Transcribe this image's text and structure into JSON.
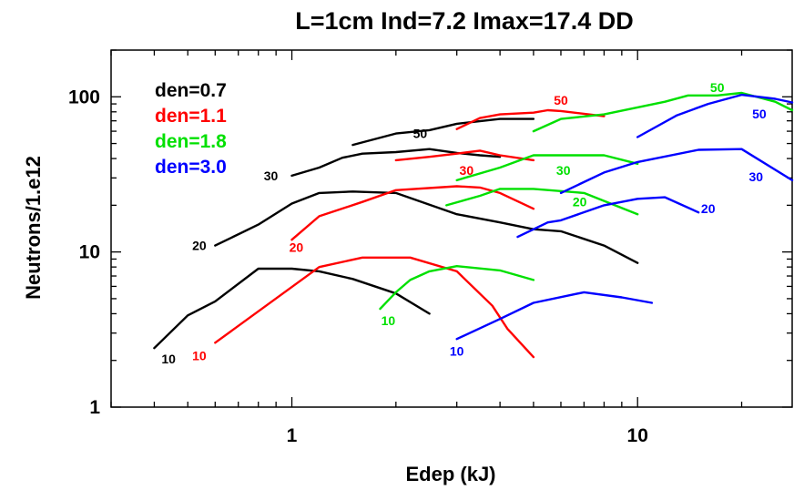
{
  "chart_data": {
    "type": "line",
    "title": "L=1cm Ind=7.2 Imax=17.4 DD",
    "xlabel": "Edep (kJ)",
    "ylabel": "Neutrons/1.e12",
    "xscale": "log",
    "yscale": "log",
    "xlim": [
      0.3,
      28
    ],
    "ylim": [
      1,
      200
    ],
    "xticks": [
      {
        "value": 1,
        "label": "1"
      },
      {
        "value": 10,
        "label": "10"
      }
    ],
    "yticks": [
      {
        "value": 1,
        "label": "1"
      },
      {
        "value": 10,
        "label": "10"
      },
      {
        "value": 100,
        "label": "100"
      }
    ],
    "legend_position": "top-left",
    "legend": [
      {
        "label": "den=0.7",
        "color": "#000000"
      },
      {
        "label": "den=1.1",
        "color": "#ff0000"
      },
      {
        "label": "den=1.8",
        "color": "#00e000"
      },
      {
        "label": "den=3.0",
        "color": "#0000ff"
      }
    ],
    "series": [
      {
        "group": "den=0.7",
        "label": "10",
        "color": "#000000",
        "label_at": [
          0.44,
          2.05
        ],
        "points": [
          [
            0.4,
            2.4
          ],
          [
            0.5,
            3.9
          ],
          [
            0.6,
            4.8
          ],
          [
            0.8,
            7.8
          ],
          [
            1.0,
            7.8
          ],
          [
            1.2,
            7.5
          ],
          [
            1.5,
            6.7
          ],
          [
            2.0,
            5.4
          ],
          [
            2.5,
            4.0
          ]
        ]
      },
      {
        "group": "den=0.7",
        "label": "20",
        "color": "#000000",
        "label_at": [
          0.54,
          11.0
        ],
        "points": [
          [
            0.6,
            11.0
          ],
          [
            0.8,
            15.0
          ],
          [
            1.0,
            20.5
          ],
          [
            1.2,
            24.0
          ],
          [
            1.5,
            24.5
          ],
          [
            2.0,
            24.0
          ],
          [
            3.0,
            17.5
          ],
          [
            4.0,
            15.5
          ],
          [
            5.0,
            14.0
          ],
          [
            6.0,
            13.6
          ],
          [
            8.0,
            11.0
          ],
          [
            10.0,
            8.5
          ]
        ]
      },
      {
        "group": "den=0.7",
        "label": "30",
        "color": "#000000",
        "label_at": [
          0.87,
          31.0
        ],
        "points": [
          [
            1.0,
            31.0
          ],
          [
            1.2,
            35.0
          ],
          [
            1.4,
            40.5
          ],
          [
            1.6,
            43.0
          ],
          [
            2.0,
            44.0
          ],
          [
            2.5,
            46.0
          ],
          [
            3.0,
            43.5
          ],
          [
            3.5,
            42.0
          ],
          [
            4.0,
            41.0
          ]
        ]
      },
      {
        "group": "den=0.7",
        "label": "50",
        "color": "#000000",
        "label_at": [
          2.35,
          58.0
        ],
        "points": [
          [
            1.5,
            49.0
          ],
          [
            2.0,
            58.0
          ],
          [
            2.5,
            61.0
          ],
          [
            3.0,
            67.0
          ],
          [
            4.0,
            72.0
          ],
          [
            5.0,
            72.0
          ]
        ]
      },
      {
        "group": "den=1.1",
        "label": "10",
        "color": "#ff0000",
        "label_at": [
          0.54,
          2.15
        ],
        "points": [
          [
            0.6,
            2.6
          ],
          [
            1.2,
            8.0
          ],
          [
            1.6,
            9.2
          ],
          [
            2.2,
            9.2
          ],
          [
            3.0,
            7.5
          ],
          [
            3.8,
            4.5
          ],
          [
            4.2,
            3.2
          ],
          [
            5.0,
            2.1
          ]
        ]
      },
      {
        "group": "den=1.1",
        "label": "20",
        "color": "#ff0000",
        "label_at": [
          1.03,
          10.7
        ],
        "points": [
          [
            1.0,
            12.0
          ],
          [
            1.2,
            17.0
          ],
          [
            1.6,
            21.0
          ],
          [
            2.0,
            25.0
          ],
          [
            3.0,
            26.5
          ],
          [
            3.5,
            26.0
          ],
          [
            4.0,
            24.0
          ],
          [
            5.0,
            19.0
          ]
        ]
      },
      {
        "group": "den=1.1",
        "label": "30",
        "color": "#ff0000",
        "label_at": [
          3.2,
          33.5
        ],
        "points": [
          [
            2.0,
            39.0
          ],
          [
            2.5,
            41.0
          ],
          [
            3.0,
            43.0
          ],
          [
            3.5,
            45.0
          ],
          [
            4.0,
            42.0
          ],
          [
            5.0,
            39.0
          ]
        ]
      },
      {
        "group": "den=1.1",
        "label": "50",
        "color": "#ff0000",
        "label_at": [
          6.0,
          95.0
        ],
        "points": [
          [
            3.0,
            62.0
          ],
          [
            3.5,
            73.0
          ],
          [
            4.0,
            77.0
          ],
          [
            5.0,
            79.0
          ],
          [
            5.5,
            82.0
          ],
          [
            6.0,
            81.0
          ],
          [
            8.0,
            75.0
          ]
        ]
      },
      {
        "group": "den=1.8",
        "label": "10",
        "color": "#00e000",
        "label_at": [
          1.9,
          3.6
        ],
        "points": [
          [
            1.8,
            4.3
          ],
          [
            2.0,
            5.5
          ],
          [
            2.2,
            6.6
          ],
          [
            2.5,
            7.5
          ],
          [
            3.0,
            8.1
          ],
          [
            4.0,
            7.6
          ],
          [
            5.0,
            6.6
          ]
        ]
      },
      {
        "group": "den=1.8",
        "label": "20",
        "color": "#00e000",
        "label_at": [
          6.8,
          21.0
        ],
        "points": [
          [
            2.8,
            20.0
          ],
          [
            3.5,
            23.0
          ],
          [
            4.0,
            25.5
          ],
          [
            5.0,
            25.5
          ],
          [
            7.0,
            24.0
          ],
          [
            10.0,
            17.5
          ]
        ]
      },
      {
        "group": "den=1.8",
        "label": "30",
        "color": "#00e000",
        "label_at": [
          6.1,
          33.5
        ],
        "points": [
          [
            3.0,
            29.0
          ],
          [
            4.0,
            35.0
          ],
          [
            5.0,
            42.0
          ],
          [
            6.0,
            42.0
          ],
          [
            8.0,
            42.0
          ],
          [
            10.0,
            37.0
          ]
        ]
      },
      {
        "group": "den=1.8",
        "label": "50",
        "color": "#00e000",
        "label_at": [
          17.0,
          115.0
        ],
        "points": [
          [
            5.0,
            60.0
          ],
          [
            6.0,
            72.0
          ],
          [
            8.0,
            77.0
          ],
          [
            12.0,
            93.0
          ],
          [
            14.0,
            102.0
          ],
          [
            17.0,
            102.0
          ],
          [
            20.0,
            106.0
          ],
          [
            25.0,
            93.0
          ],
          [
            28.0,
            82.0
          ]
        ]
      },
      {
        "group": "den=3.0",
        "label": "10",
        "color": "#0000ff",
        "label_at": [
          3.0,
          2.3
        ],
        "points": [
          [
            3.0,
            2.75
          ],
          [
            4.0,
            3.7
          ],
          [
            5.0,
            4.7
          ],
          [
            7.0,
            5.5
          ],
          [
            9.0,
            5.1
          ],
          [
            11.0,
            4.7
          ]
        ]
      },
      {
        "group": "den=3.0",
        "label": "20",
        "color": "#0000ff",
        "label_at": [
          16.0,
          19.0
        ],
        "points": [
          [
            4.5,
            12.5
          ],
          [
            5.5,
            15.5
          ],
          [
            6.0,
            16.0
          ],
          [
            8.0,
            20.0
          ],
          [
            10.0,
            22.0
          ],
          [
            12.0,
            22.5
          ],
          [
            15.0,
            18.0
          ]
        ]
      },
      {
        "group": "den=3.0",
        "label": "30",
        "color": "#0000ff",
        "label_at": [
          22.0,
          30.5
        ],
        "points": [
          [
            6.0,
            24.0
          ],
          [
            8.0,
            32.5
          ],
          [
            10.0,
            38.0
          ],
          [
            15.0,
            45.5
          ],
          [
            20.0,
            46.0
          ],
          [
            28.0,
            29.0
          ]
        ]
      },
      {
        "group": "den=3.0",
        "label": "50",
        "color": "#0000ff",
        "label_at": [
          22.5,
          77.5
        ],
        "points": [
          [
            10.0,
            55.0
          ],
          [
            13.0,
            76.0
          ],
          [
            16.0,
            90.0
          ],
          [
            20.0,
            103.0
          ],
          [
            25.0,
            97.0
          ],
          [
            28.0,
            92.0
          ]
        ]
      }
    ]
  }
}
